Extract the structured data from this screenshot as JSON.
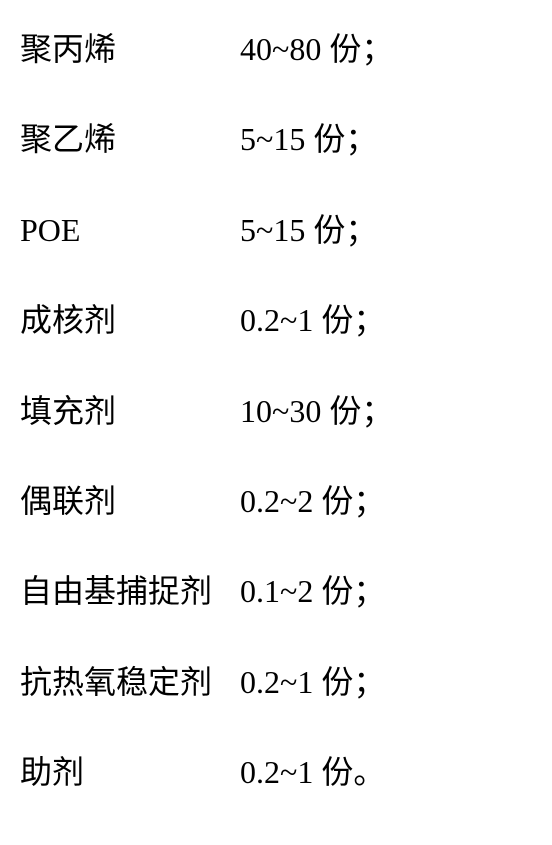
{
  "ingredients": [
    {
      "name": "聚丙烯",
      "amount": "40~80 份；"
    },
    {
      "name": "聚乙烯",
      "amount": "5~15 份；"
    },
    {
      "name": "POE",
      "amount": "5~15 份；"
    },
    {
      "name": "成核剂",
      "amount": "0.2~1 份；"
    },
    {
      "name": "填充剂",
      "amount": "10~30 份；"
    },
    {
      "name": "偶联剂",
      "amount": "0.2~2 份；"
    },
    {
      "name": "自由基捕捉剂",
      "amount": "0.1~2 份；"
    },
    {
      "name": "抗热氧稳定剂",
      "amount": "0.2~1 份；"
    },
    {
      "name": "助剂",
      "amount": "0.2~1 份。"
    }
  ],
  "styling": {
    "background_color": "#ffffff",
    "text_color": "#000000",
    "font_family": "SimSun",
    "font_size": 32,
    "row_gap": 52,
    "name_column_width": 220
  }
}
